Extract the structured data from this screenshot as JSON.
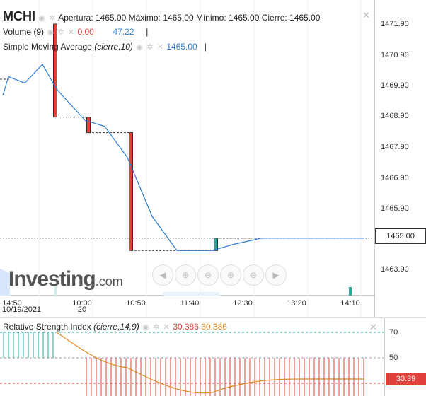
{
  "header": {
    "symbol": "MCHI",
    "ohlc_text": "Apertura: 1465.00 Máximo: 1465.00 Mínimo: 1465.00 Cierre: 1465.00"
  },
  "volume_legend": {
    "name": "Volume (9)",
    "value1": "0.00",
    "value2": "47.22",
    "cursor": "|"
  },
  "sma_legend": {
    "name": "Simple Moving Average",
    "params": "(cierre,10)",
    "value": "1465.00",
    "cursor": "|"
  },
  "rsi_legend": {
    "name": "Relative Strength Index",
    "params": "(cierre,14,9)",
    "value1": "30.386",
    "value2": "30.386"
  },
  "controls": {
    "eye": "eye-icon",
    "gear": "gear-icon",
    "close": "close-icon"
  },
  "price_axis": [
    "1471.90",
    "1470.90",
    "1469.90",
    "1468.90",
    "1467.90",
    "1466.90",
    "1465.90",
    "1463.90"
  ],
  "price_tag": "1465.00",
  "time_axis": [
    {
      "top": "14:50",
      "bottom": "10/19/2021"
    },
    {
      "top": "10:00",
      "bottom": "20"
    },
    {
      "top": "10:50",
      "bottom": ""
    },
    {
      "top": "11:40",
      "bottom": ""
    },
    {
      "top": "12:30",
      "bottom": ""
    },
    {
      "top": "13:20",
      "bottom": ""
    },
    {
      "top": "14:10",
      "bottom": ""
    }
  ],
  "rsi_axis": [
    "70",
    "50"
  ],
  "rsi_tag": "30.39",
  "logo": {
    "word": "Investing",
    "suffix": ".com"
  },
  "nav_buttons": [
    "◀",
    "⊕",
    "⊖",
    "⊕",
    "⊖",
    "▶"
  ],
  "colors": {
    "up": "#26a69a",
    "down": "#e0413a",
    "sma": "#2f7ed8",
    "rsi": "#e08a1e"
  },
  "chart_data": {
    "type": "line",
    "title": "MCHI",
    "candles": [
      {
        "t": "09:30",
        "open": 1471.9,
        "close": 1468.9
      },
      {
        "t": "10:00",
        "open": 1468.9,
        "close": 1468.4
      },
      {
        "t": "10:50",
        "open": 1468.4,
        "close": 1464.6
      },
      {
        "t": "12:05",
        "open": 1464.6,
        "close": 1465.0
      }
    ],
    "sma": [
      1469.6,
      1470.2,
      1470.0,
      1470.6,
      1469.8,
      1468.8,
      1468.6,
      1467.6,
      1465.7,
      1464.6,
      1464.6,
      1464.8,
      1465.0,
      1465.0,
      1465.0
    ],
    "ylim": [
      1463.5,
      1472.3
    ],
    "last_price": 1465.0,
    "rsi_ylim": [
      20,
      80
    ],
    "rsi_levels": [
      70,
      50,
      30
    ]
  }
}
